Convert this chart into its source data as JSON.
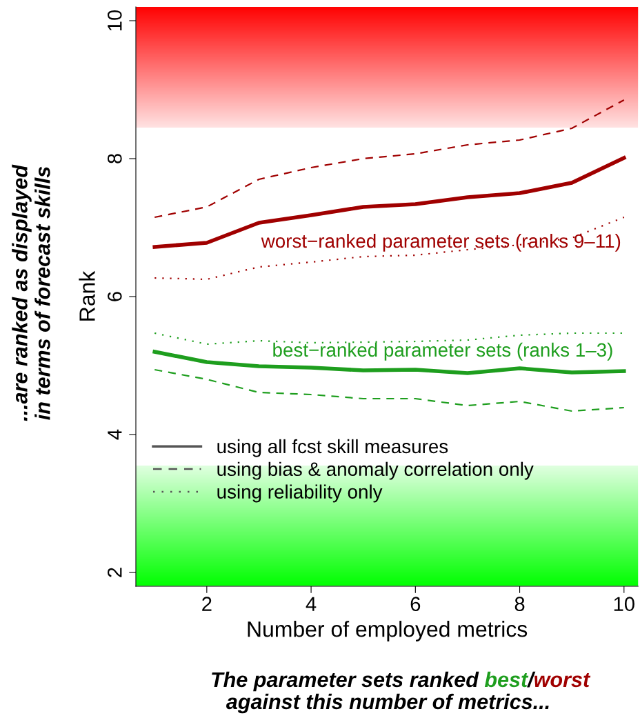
{
  "chart_data": {
    "type": "line",
    "xlabel": "Number of employed metrics",
    "ylabel": "Rank",
    "x": [
      1,
      2,
      3,
      4,
      5,
      6,
      7,
      8,
      9,
      10
    ],
    "xlim": [
      0.64,
      10.27
    ],
    "xticks": [
      2,
      4,
      6,
      8,
      10
    ],
    "ylim": [
      1.8,
      10.2
    ],
    "yticks": [
      2,
      4,
      6,
      8,
      10
    ],
    "grid": false,
    "legend": "bottom left",
    "series": [
      {
        "color": "#a00000",
        "line_style": "solid",
        "values": [
          6.72,
          6.78,
          7.07,
          7.18,
          7.3,
          7.34,
          7.44,
          7.5,
          7.65,
          8.01
        ]
      },
      {
        "color": "#a00000",
        "line_style": "dashed",
        "values": [
          7.15,
          7.3,
          7.7,
          7.87,
          8.0,
          8.07,
          8.2,
          8.27,
          8.44,
          8.85
        ]
      },
      {
        "color": "#a00000",
        "line_style": "dotted",
        "values": [
          6.27,
          6.25,
          6.43,
          6.5,
          6.58,
          6.6,
          6.68,
          6.75,
          6.85,
          7.15
        ]
      },
      {
        "color": "#1e9e1e",
        "line_style": "solid",
        "values": [
          5.2,
          5.05,
          4.99,
          4.97,
          4.93,
          4.94,
          4.89,
          4.96,
          4.9,
          4.92
        ]
      },
      {
        "color": "#1e9e1e",
        "line_style": "dashed",
        "values": [
          4.94,
          4.8,
          4.61,
          4.58,
          4.52,
          4.52,
          4.42,
          4.48,
          4.34,
          4.39
        ]
      },
      {
        "color": "#1e9e1e",
        "line_style": "dotted",
        "values": [
          5.47,
          5.31,
          5.36,
          5.33,
          5.34,
          5.35,
          5.37,
          5.44,
          5.47,
          5.47
        ]
      },
      {
        "name": "using all fcst skill measures",
        "color": "#555555",
        "line_style": "solid",
        "values": [
          null,
          null,
          null,
          null,
          null,
          null,
          null,
          null,
          null,
          null
        ]
      },
      {
        "name": "using bias & anomaly correlation only",
        "color": "#555555",
        "line_style": "dashed",
        "values": [
          null,
          null,
          null,
          null,
          null,
          null,
          null,
          null,
          null,
          null
        ]
      },
      {
        "name": "using reliability only",
        "color": "#555555",
        "line_style": "dotted",
        "values": [
          null,
          null,
          null,
          null,
          null,
          null,
          null,
          null,
          null,
          null
        ]
      }
    ],
    "bands": [
      {
        "axis": "y",
        "from": 8.45,
        "to": 10.2,
        "color": "#ff0000"
      },
      {
        "axis": "y",
        "from": 1.8,
        "to": 3.55,
        "color": "#00ff00"
      }
    ],
    "annotations": [
      "worst−ranked parameter sets (ranks 9–11)",
      "best−ranked parameter sets (ranks 1–3)",
      "...are ranked as displayed\nin terms of forecast skills",
      "The parameter sets ranked ",
      "best",
      "/",
      "worst",
      "against this number of metrics..."
    ]
  }
}
